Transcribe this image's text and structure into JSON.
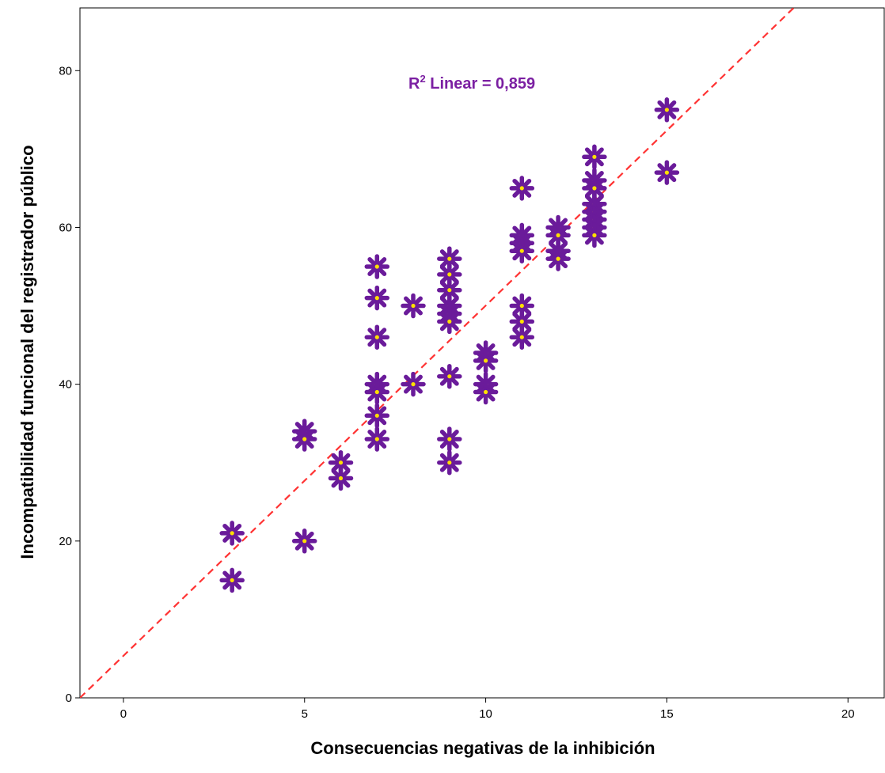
{
  "chart_data": {
    "type": "scatter",
    "title": "",
    "xlabel": "Consecuencias negativas de la inhibición",
    "ylabel": "Incompatibilidad funcional del registrador público",
    "xlim": [
      -1.2,
      21
    ],
    "ylim": [
      0,
      88
    ],
    "xticks": [
      "0",
      "5",
      "10",
      "15",
      "20"
    ],
    "yticks": [
      "0",
      "20",
      "40",
      "60",
      "80"
    ],
    "grid": false,
    "annotation": {
      "prefix": "R",
      "superscript": "2",
      "text": " Linear = 0,859"
    },
    "fit_line": {
      "style": "dashed",
      "color": "#ff3333",
      "points": [
        [
          -1.2,
          0
        ],
        [
          18.5,
          88
        ]
      ]
    },
    "marker": {
      "shape": "asterisk",
      "color": "#6a1b9a",
      "center_color": "#ffe000"
    },
    "points": [
      [
        3,
        21
      ],
      [
        3,
        15
      ],
      [
        5,
        34
      ],
      [
        5,
        33
      ],
      [
        5,
        20
      ],
      [
        6,
        30
      ],
      [
        6,
        28
      ],
      [
        7,
        55
      ],
      [
        7,
        51
      ],
      [
        7,
        46
      ],
      [
        7,
        40
      ],
      [
        7,
        39
      ],
      [
        7,
        36
      ],
      [
        7,
        33
      ],
      [
        8,
        50
      ],
      [
        8,
        40
      ],
      [
        9,
        56
      ],
      [
        9,
        54
      ],
      [
        9,
        52
      ],
      [
        9,
        50
      ],
      [
        9,
        49
      ],
      [
        9,
        48
      ],
      [
        9,
        41
      ],
      [
        9,
        33
      ],
      [
        9,
        30
      ],
      [
        10,
        44
      ],
      [
        10,
        43
      ],
      [
        10,
        40
      ],
      [
        10,
        39
      ],
      [
        11,
        65
      ],
      [
        11,
        59
      ],
      [
        11,
        58
      ],
      [
        11,
        57
      ],
      [
        11,
        50
      ],
      [
        11,
        48
      ],
      [
        11,
        46
      ],
      [
        12,
        60
      ],
      [
        12,
        59
      ],
      [
        12,
        57
      ],
      [
        12,
        56
      ],
      [
        13,
        69
      ],
      [
        13,
        66
      ],
      [
        13,
        65
      ],
      [
        13,
        63
      ],
      [
        13,
        62
      ],
      [
        13,
        61
      ],
      [
        13,
        60
      ],
      [
        13,
        59
      ],
      [
        15,
        75
      ],
      [
        15,
        67
      ]
    ]
  }
}
